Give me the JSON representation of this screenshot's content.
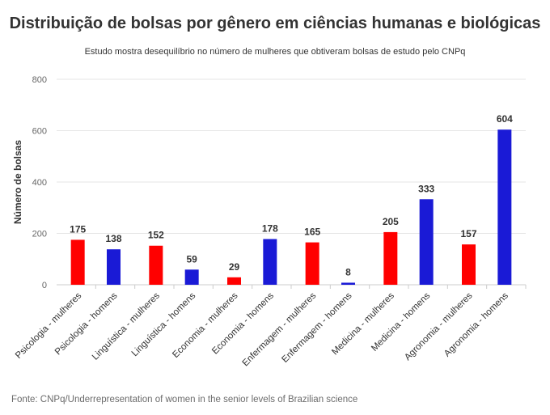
{
  "header": {
    "title": "Distribuição de bolsas por gênero em ciências humanas e biológicas",
    "subtitle": "Estudo mostra desequilíbrio no número de mulheres que obtiveram bolsas de estudo pelo CNPq"
  },
  "footer": {
    "source": "Fonte: CNPq/Underrepresentation of women in the senior levels of Brazilian science"
  },
  "colors": {
    "mulheres": "#ff0000",
    "homens": "#1a1ad6"
  },
  "chart_data": {
    "type": "bar",
    "title": "Distribuição de bolsas por gênero em ciências humanas e biológicas",
    "subtitle": "Estudo mostra desequilíbrio no número de mulheres que obtiveram bolsas de estudo pelo CNPq",
    "xlabel": "",
    "ylabel": "Número de bolsas",
    "ylim": [
      0,
      800
    ],
    "yticks": [
      0,
      200,
      400,
      600,
      800
    ],
    "grid": true,
    "categories": [
      "Psicologia - mulheres",
      "Psicologia - homens",
      "Linguística - mulheres",
      "Linguística - homens",
      "Economia - mulheres",
      "Economia - homens",
      "Enfermagem - mulheres",
      "Enfermagem - homens",
      "Medicina - mulheres",
      "Medicina - homens",
      "Agronomia - mulheres",
      "Agronomia - homens"
    ],
    "values": [
      175,
      138,
      152,
      59,
      29,
      178,
      165,
      8,
      205,
      333,
      157,
      604
    ],
    "genders": [
      "mulheres",
      "homens",
      "mulheres",
      "homens",
      "mulheres",
      "homens",
      "mulheres",
      "homens",
      "mulheres",
      "homens",
      "mulheres",
      "homens"
    ]
  }
}
